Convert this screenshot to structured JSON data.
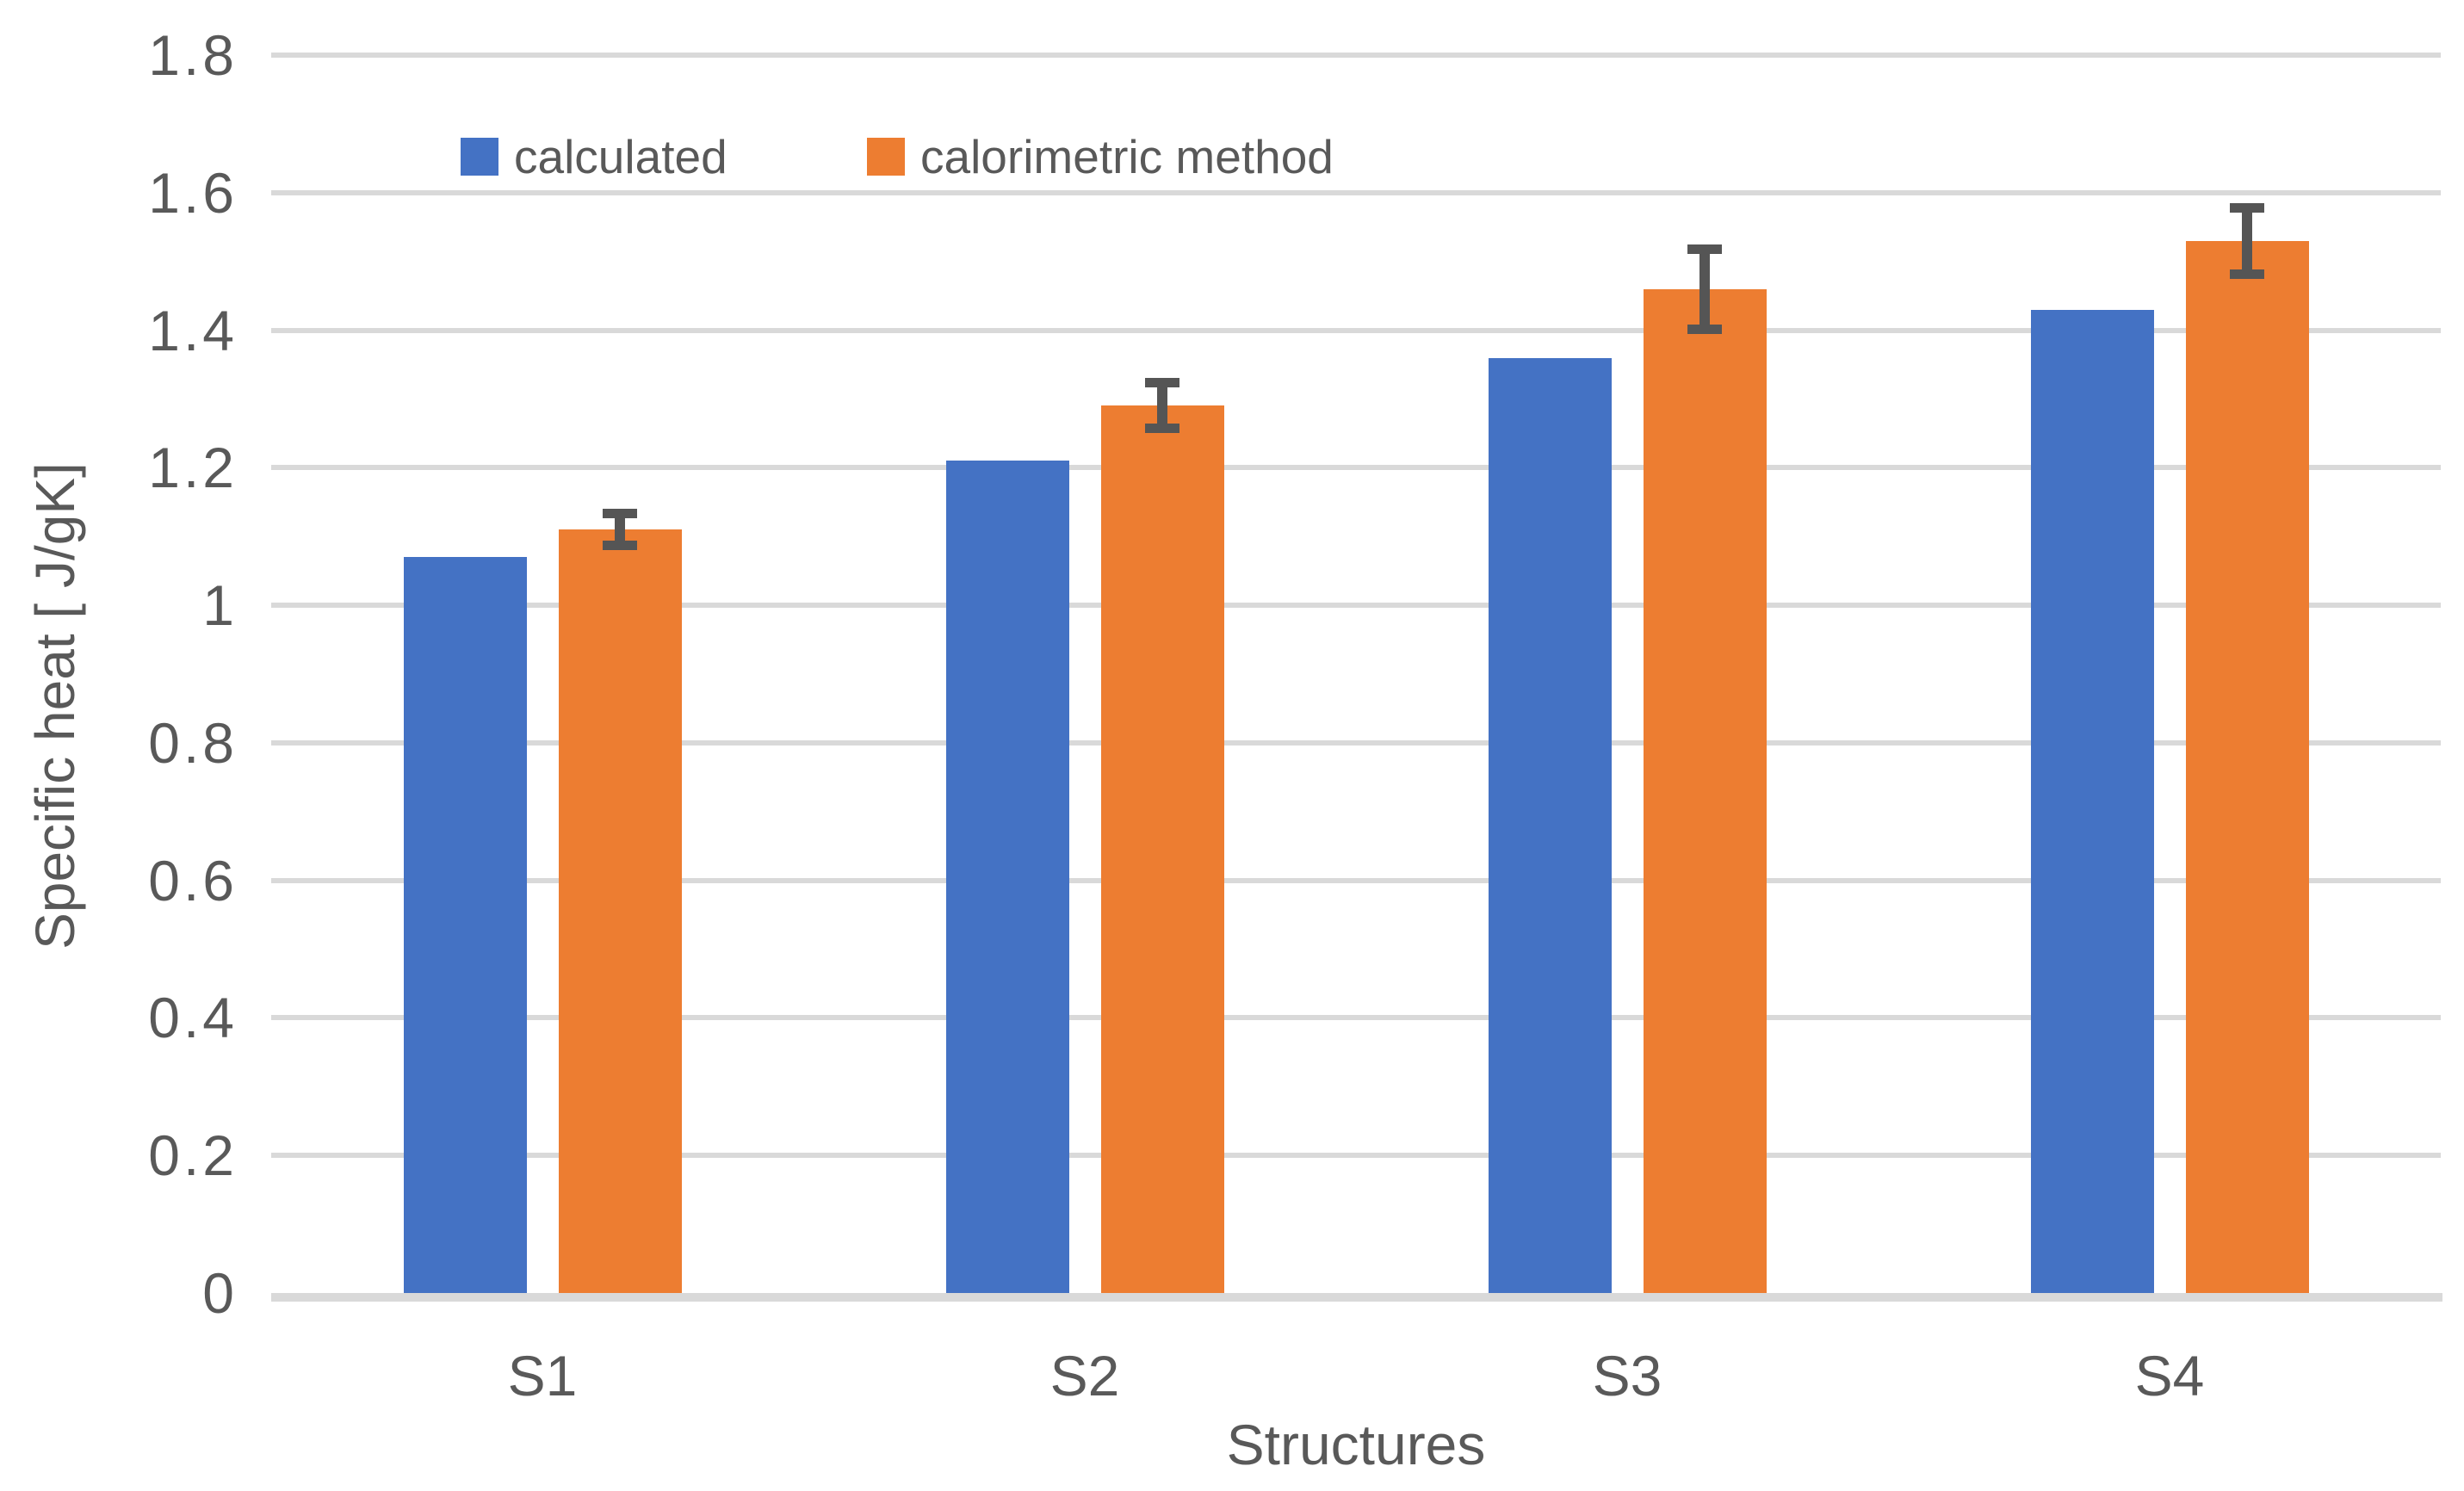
{
  "chart_data": {
    "type": "bar",
    "title": "",
    "categories": [
      "S1",
      "S2",
      "S3",
      "S4"
    ],
    "series": [
      {
        "name": "calculated",
        "color": "#4472C4",
        "values": [
          1.07,
          1.21,
          1.36,
          1.43
        ]
      },
      {
        "name": "calorimetric method",
        "color": "#ED7D31",
        "values": [
          1.11,
          1.29,
          1.46,
          1.53
        ],
        "error_bars": [
          0.03,
          0.04,
          0.065,
          0.055
        ]
      }
    ],
    "xlabel": "Structures",
    "ylabel": "Specific heat [ J/gK]",
    "ylim": [
      0,
      1.8
    ],
    "yticks": [
      {
        "value": 1.8,
        "label": "1.8"
      },
      {
        "value": 1.6,
        "label": "1.6"
      },
      {
        "value": 1.4,
        "label": "1.4"
      },
      {
        "value": 1.2,
        "label": "1.2"
      },
      {
        "value": 1.0,
        "label": "1"
      },
      {
        "value": 0.8,
        "label": "0.8"
      },
      {
        "value": 0.6,
        "label": "0.6"
      },
      {
        "value": 0.4,
        "label": "0.4"
      },
      {
        "value": 0.2,
        "label": "0.2"
      },
      {
        "value": 0.0,
        "label": "0"
      }
    ],
    "grid": "horizontal",
    "legend_position": "top-inside",
    "styles": {
      "grid_color": "#D9D9D9",
      "axis_line_color": "#D9D9D9",
      "text_color": "#595959",
      "error_bar_color": "#555555",
      "background": "#FFFFFF"
    }
  }
}
